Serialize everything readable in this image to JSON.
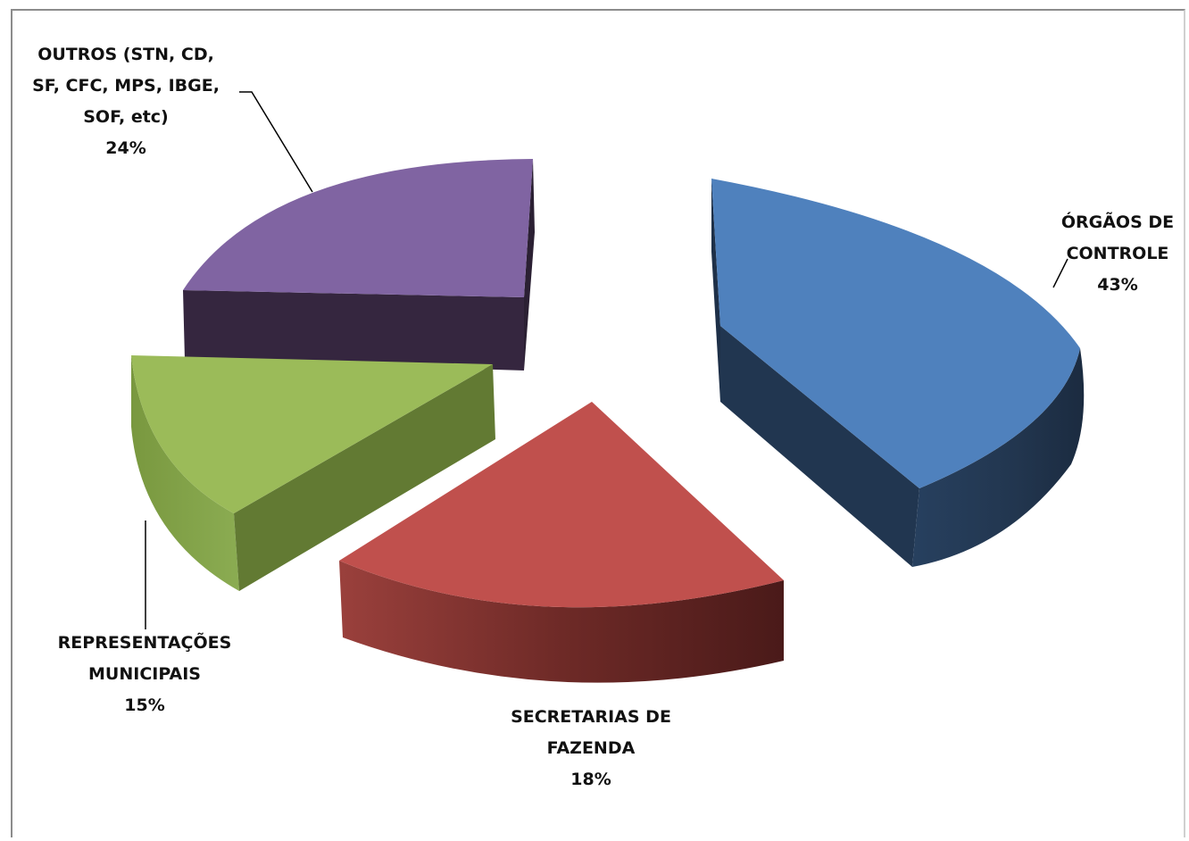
{
  "chart_data": {
    "type": "pie",
    "title": "",
    "style": "3d-exploded",
    "legend": "none",
    "slices": [
      {
        "name": "ÓRGÃOS DE CONTROLE",
        "label_lines": [
          "ÓRGÃOS DE",
          "CONTROLE"
        ],
        "value_label": "43%",
        "value": 43,
        "color": "#4f81bd"
      },
      {
        "name": "SECRETARIAS DE FAZENDA",
        "label_lines": [
          "SECRETARIAS  DE",
          "FAZENDA"
        ],
        "value_label": "18%",
        "value": 18,
        "color": "#c0504d"
      },
      {
        "name": "REPRESENTAÇÕES MUNICIPAIS",
        "label_lines": [
          "REPRESENTAÇÕES",
          "MUNICIPAIS"
        ],
        "value_label": "15%",
        "value": 15,
        "color": "#9bbb59"
      },
      {
        "name": "OUTROS (STN, CD, SF, CFC, MPS, IBGE, SOF, etc)",
        "label_lines": [
          "OUTROS (STN, CD,",
          "SF, CFC, MPS, IBGE,",
          "SOF, etc)"
        ],
        "value_label": "24%",
        "value": 24,
        "color": "#8064a2"
      }
    ]
  }
}
